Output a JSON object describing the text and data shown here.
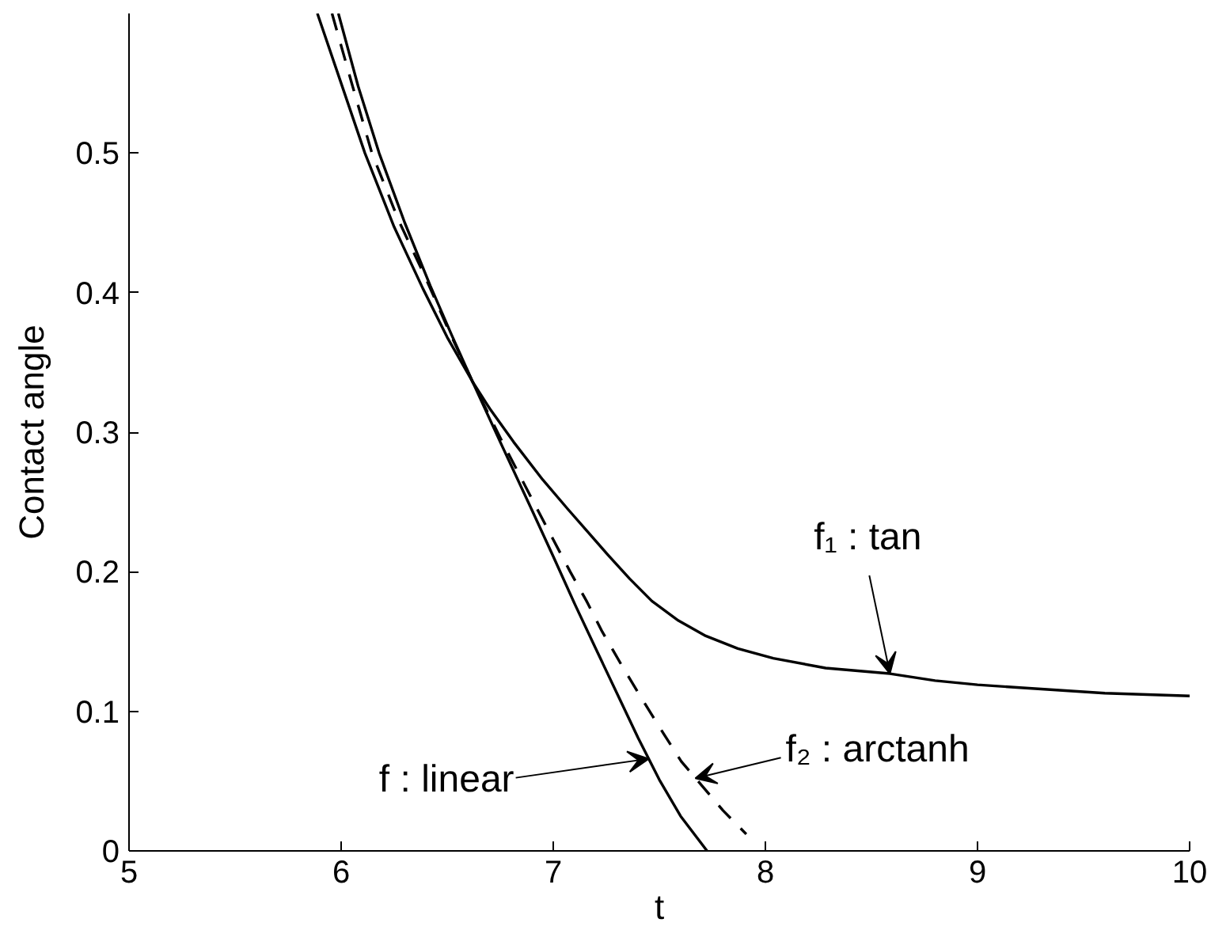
{
  "chart_data": {
    "type": "line",
    "xlabel": "t",
    "ylabel": "Contact angle",
    "xlim": [
      5,
      10
    ],
    "ylim": [
      0,
      0.6
    ],
    "xticks": [
      5,
      6,
      7,
      8,
      9,
      10
    ],
    "yticks": [
      0,
      0.1,
      0.2,
      0.3,
      0.4,
      0.5
    ],
    "grid": false,
    "series": [
      {
        "color": "#000000",
        "line_style": "solid",
        "x": [
          5.888,
          6.0,
          6.112,
          6.25,
          6.385,
          6.5,
          6.62,
          6.7,
          6.813,
          6.95,
          7.068,
          7.16,
          7.258,
          7.36,
          7.465,
          7.59,
          7.719,
          7.87,
          8.037,
          8.284,
          8.587,
          8.8,
          9.0,
          9.2,
          9.4,
          9.6,
          9.8,
          10.0
        ],
        "values": [
          0.6,
          0.55,
          0.5,
          0.447,
          0.403,
          0.368,
          0.336,
          0.317,
          0.293,
          0.266,
          0.245,
          0.229,
          0.212,
          0.195,
          0.179,
          0.165,
          0.154,
          0.145,
          0.138,
          0.131,
          0.127,
          0.122,
          0.119,
          0.117,
          0.115,
          0.113,
          0.112,
          0.111
        ]
      },
      {
        "color": "#000000",
        "line_style": "dashed",
        "x": [
          5.957,
          6.05,
          6.145,
          6.27,
          6.4,
          6.51,
          6.62,
          6.75,
          6.9,
          7.0,
          7.08,
          7.157,
          7.231,
          7.33,
          7.43,
          7.52,
          7.604,
          7.716,
          7.8,
          7.91
        ],
        "values": [
          0.6,
          0.55,
          0.5,
          0.452,
          0.41,
          0.372,
          0.336,
          0.296,
          0.252,
          0.223,
          0.2,
          0.179,
          0.157,
          0.131,
          0.106,
          0.084,
          0.064,
          0.044,
          0.029,
          0.012
        ]
      },
      {
        "color": "#000000",
        "line_style": "solid",
        "x": [
          5.987,
          6.08,
          6.179,
          6.3,
          6.42,
          6.52,
          6.62,
          6.75,
          6.9,
          7.0,
          7.104,
          7.2,
          7.3,
          7.4,
          7.5,
          7.6,
          7.725
        ],
        "values": [
          0.6,
          0.548,
          0.5,
          0.45,
          0.405,
          0.37,
          0.336,
          0.293,
          0.244,
          0.211,
          0.176,
          0.145,
          0.113,
          0.081,
          0.051,
          0.025,
          0
        ]
      }
    ],
    "annotations": [
      {
        "text": "f₁ : tan",
        "x": 8.587,
        "y": 0.127
      },
      {
        "text": "f₂ : arctanh",
        "x": 7.67,
        "y": 0.052
      },
      {
        "text": "f : linear",
        "x": 7.45,
        "y": 0.066
      }
    ]
  }
}
